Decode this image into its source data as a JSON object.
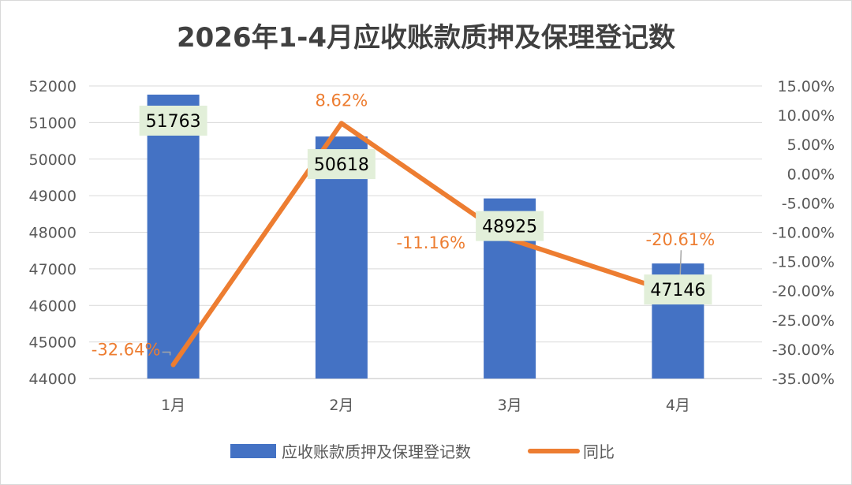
{
  "chart_data": {
    "type": "bar",
    "title": "2026年1-4月应收账款质押及保理登记数",
    "categories": [
      "1月",
      "2月",
      "3月",
      "4月"
    ],
    "series": [
      {
        "name": "应收账款质押及保理登记数",
        "type": "bar",
        "axis": "left",
        "color": "#4472c4",
        "values": [
          51763,
          50618,
          48925,
          47146
        ],
        "labels": [
          "51763",
          "50618",
          "48925",
          "47146"
        ]
      },
      {
        "name": "同比",
        "type": "line",
        "axis": "right",
        "color": "#ed7d31",
        "values": [
          -32.64,
          8.62,
          -11.16,
          -20.61
        ],
        "labels": [
          "-32.64%",
          "8.62%",
          "-11.16%",
          "-20.61%"
        ]
      }
    ],
    "ylim_left": [
      44000,
      52000
    ],
    "yticks_left": [
      "52000",
      "51000",
      "50000",
      "49000",
      "48000",
      "47000",
      "46000",
      "45000",
      "44000"
    ],
    "ylim_right": [
      -35,
      15
    ],
    "yticks_right": [
      "15.00%",
      "10.00%",
      "5.00%",
      "0.00%",
      "-5.00%",
      "-10.00%",
      "-15.00%",
      "-20.00%",
      "-25.00%",
      "-30.00%",
      "-35.00%"
    ],
    "grid": true,
    "legend": "bottom"
  }
}
